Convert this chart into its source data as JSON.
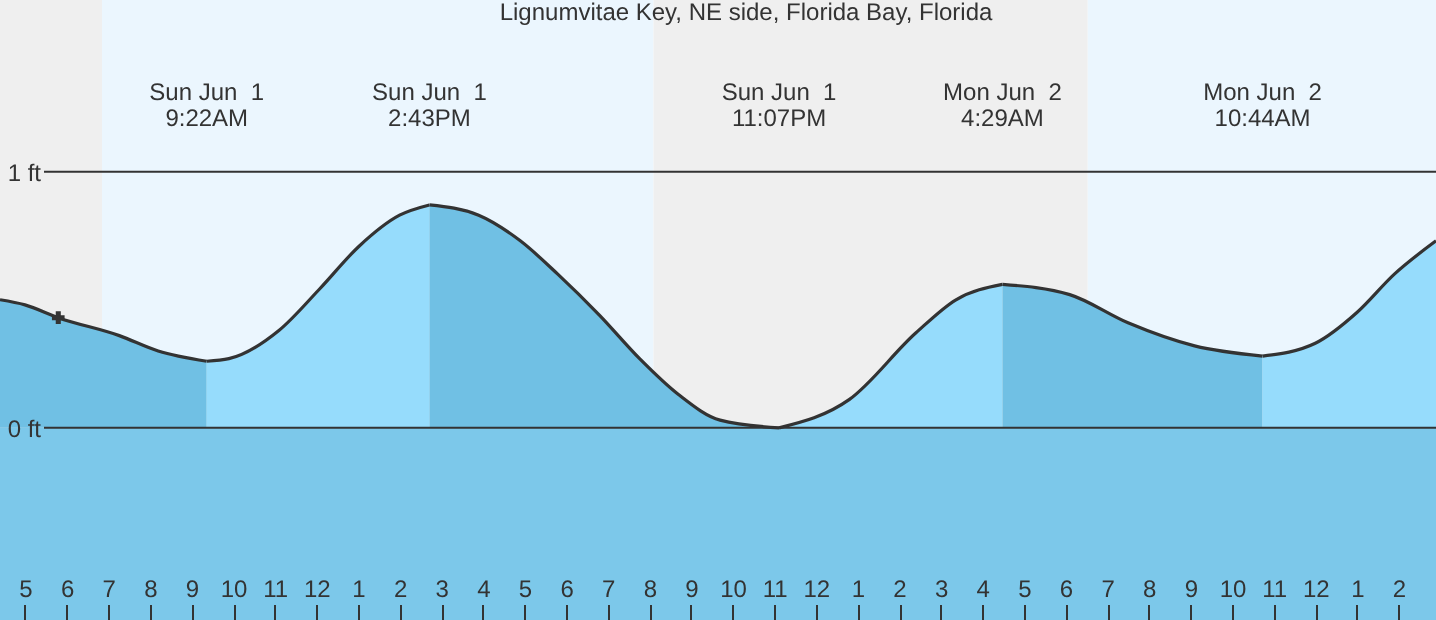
{
  "chart_data": {
    "type": "area",
    "title": "Lignumvitae Key, NE side, Florida Bay, Florida",
    "xlim": [
      "--06-01T04:24",
      "--06-02T14:54"
    ],
    "ylim": [
      -0.75,
      1.67
    ],
    "yticks": [
      {
        "value": 0,
        "label": "0 ft"
      },
      {
        "value": 1,
        "label": "1 ft"
      }
    ],
    "xticks": [
      {
        "value": "--06-01T05:00",
        "label": "5"
      },
      {
        "value": "--06-01T06:00",
        "label": "6"
      },
      {
        "value": "--06-01T07:00",
        "label": "7"
      },
      {
        "value": "--06-01T08:00",
        "label": "8"
      },
      {
        "value": "--06-01T09:00",
        "label": "9"
      },
      {
        "value": "--06-01T10:00",
        "label": "10"
      },
      {
        "value": "--06-01T11:00",
        "label": "11"
      },
      {
        "value": "--06-01T12:00",
        "label": "12"
      },
      {
        "value": "--06-01T13:00",
        "label": "1"
      },
      {
        "value": "--06-01T14:00",
        "label": "2"
      },
      {
        "value": "--06-01T15:00",
        "label": "3"
      },
      {
        "value": "--06-01T16:00",
        "label": "4"
      },
      {
        "value": "--06-01T17:00",
        "label": "5"
      },
      {
        "value": "--06-01T18:00",
        "label": "6"
      },
      {
        "value": "--06-01T19:00",
        "label": "7"
      },
      {
        "value": "--06-01T20:00",
        "label": "8"
      },
      {
        "value": "--06-01T21:00",
        "label": "9"
      },
      {
        "value": "--06-01T22:00",
        "label": "10"
      },
      {
        "value": "--06-01T23:00",
        "label": "11"
      },
      {
        "value": "--06-02T00:00",
        "label": "12"
      },
      {
        "value": "--06-02T01:00",
        "label": "1"
      },
      {
        "value": "--06-02T02:00",
        "label": "2"
      },
      {
        "value": "--06-02T03:00",
        "label": "3"
      },
      {
        "value": "--06-02T04:00",
        "label": "4"
      },
      {
        "value": "--06-02T05:00",
        "label": "5"
      },
      {
        "value": "--06-02T06:00",
        "label": "6"
      },
      {
        "value": "--06-02T07:00",
        "label": "7"
      },
      {
        "value": "--06-02T08:00",
        "label": "8"
      },
      {
        "value": "--06-02T09:00",
        "label": "9"
      },
      {
        "value": "--06-02T10:00",
        "label": "10"
      },
      {
        "value": "--06-02T11:00",
        "label": "11"
      },
      {
        "value": "--06-02T12:00",
        "label": "12"
      },
      {
        "value": "--06-02T13:00",
        "label": "1"
      },
      {
        "value": "--06-02T14:00",
        "label": "2"
      }
    ],
    "grid": "y",
    "bands": [
      {
        "axis": "x",
        "from": "--06-01T04:24",
        "to": "--06-01T06:51",
        "color": "#efefef"
      },
      {
        "axis": "x",
        "from": "--06-01T06:51",
        "to": "--06-01T20:06",
        "color": "#ebf6fe"
      },
      {
        "axis": "x",
        "from": "--06-01T20:06",
        "to": "--06-02T06:32",
        "color": "#efefef"
      },
      {
        "axis": "x",
        "from": "--06-02T06:32",
        "to": "--06-02T14:54",
        "color": "#ebf6fe"
      },
      {
        "axis": "y",
        "from": -0.75,
        "to": 0,
        "color": "#7cc8ea"
      }
    ],
    "annotations": [
      "Sun Jun  1\n9:22AM",
      "Sun Jun  1\n2:43PM",
      "Sun Jun  1\n11:07PM",
      "Mon Jun  2\n4:29AM",
      "Mon Jun  2\n10:44AM"
    ],
    "series": [
      {
        "color": "#70c0e4",
        "x": [
          "--06-01T04:24",
          "--06-01T05:00",
          "--06-01T05:48",
          "--06-01T07:16",
          "--06-01T08:12",
          "--06-01T09:22"
        ],
        "values": [
          0.5,
          0.48,
          0.43,
          0.36,
          0.3,
          0.26
        ]
      },
      {
        "color": "#96dcfc",
        "x": [
          "--06-01T09:22",
          "--06-01T09:54",
          "--06-01T11:06",
          "--06-01T12:04",
          "--06-01T13:02",
          "--06-01T14:00",
          "--06-01T14:43"
        ],
        "values": [
          0.26,
          0.27,
          0.38,
          0.54,
          0.71,
          0.83,
          0.87
        ]
      },
      {
        "color": "#70c0e4",
        "x": [
          "--06-01T14:43",
          "--06-01T15:54",
          "--06-01T16:54",
          "--06-01T17:48",
          "--06-01T18:48",
          "--06-01T19:46",
          "--06-01T20:42",
          "--06-01T21:42",
          "--06-01T23:07"
        ],
        "values": [
          0.87,
          0.83,
          0.73,
          0.6,
          0.44,
          0.27,
          0.13,
          0.03,
          0.0
        ]
      },
      {
        "color": "#96dcfc",
        "x": [
          "--06-01T23:07",
          "--06-02T00:48",
          "--06-02T02:24",
          "--06-02T03:22",
          "--06-02T04:29"
        ],
        "values": [
          0.0,
          0.11,
          0.37,
          0.5,
          0.56
        ]
      },
      {
        "color": "#70c0e4",
        "x": [
          "--06-02T04:29",
          "--06-02T06:06",
          "--06-02T07:30",
          "--06-02T09:06",
          "--06-02T10:44"
        ],
        "values": [
          0.56,
          0.52,
          0.41,
          0.32,
          0.28
        ]
      },
      {
        "color": "#96dcfc",
        "x": [
          "--06-02T10:44",
          "--06-02T12:00",
          "--06-02T13:00",
          "--06-02T13:54",
          "--06-02T14:54"
        ],
        "values": [
          0.28,
          0.33,
          0.45,
          0.6,
          0.73
        ]
      },
      {
        "type": "scatter",
        "color": "#333333",
        "marker": "cross",
        "x": [
          "--06-01T05:48"
        ],
        "values": [
          0.43
        ]
      }
    ]
  }
}
